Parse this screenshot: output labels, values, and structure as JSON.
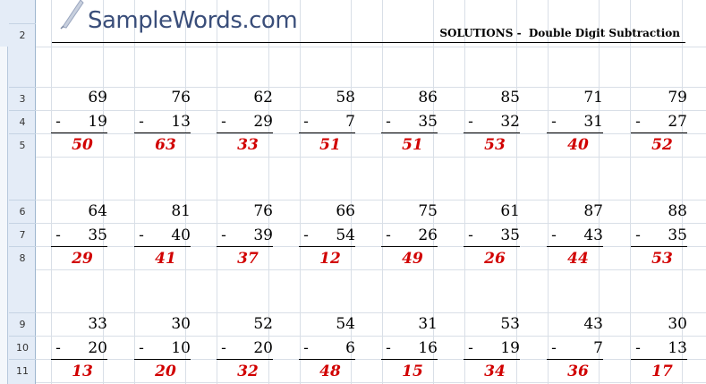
{
  "header": {
    "logo_text": "SampleWords.com",
    "title": "SOLUTIONS -  Double Digit Subtraction"
  },
  "row_labels": [
    "2",
    "3",
    "4",
    "5",
    "6",
    "7",
    "8",
    "9",
    "10",
    "11"
  ],
  "minus_sign": "-",
  "problem_groups": [
    {
      "tops": [
        "69",
        "76",
        "62",
        "58",
        "86",
        "85",
        "71",
        "79"
      ],
      "bottoms": [
        "19",
        "13",
        "29",
        "7",
        "35",
        "32",
        "31",
        "27"
      ],
      "answers": [
        "50",
        "63",
        "33",
        "51",
        "51",
        "53",
        "40",
        "52"
      ]
    },
    {
      "tops": [
        "64",
        "81",
        "76",
        "66",
        "75",
        "61",
        "87",
        "88"
      ],
      "bottoms": [
        "35",
        "40",
        "39",
        "54",
        "26",
        "35",
        "43",
        "35"
      ],
      "answers": [
        "29",
        "41",
        "37",
        "12",
        "49",
        "26",
        "44",
        "53"
      ]
    },
    {
      "tops": [
        "33",
        "30",
        "52",
        "54",
        "31",
        "53",
        "43",
        "30"
      ],
      "bottoms": [
        "20",
        "10",
        "20",
        "6",
        "16",
        "19",
        "7",
        "13"
      ],
      "answers": [
        "13",
        "20",
        "32",
        "48",
        "15",
        "34",
        "36",
        "17"
      ]
    }
  ],
  "colors": {
    "answer": "#d10000",
    "row_header_bg": "#e4ecf7",
    "logo": "#3a4e7a"
  }
}
